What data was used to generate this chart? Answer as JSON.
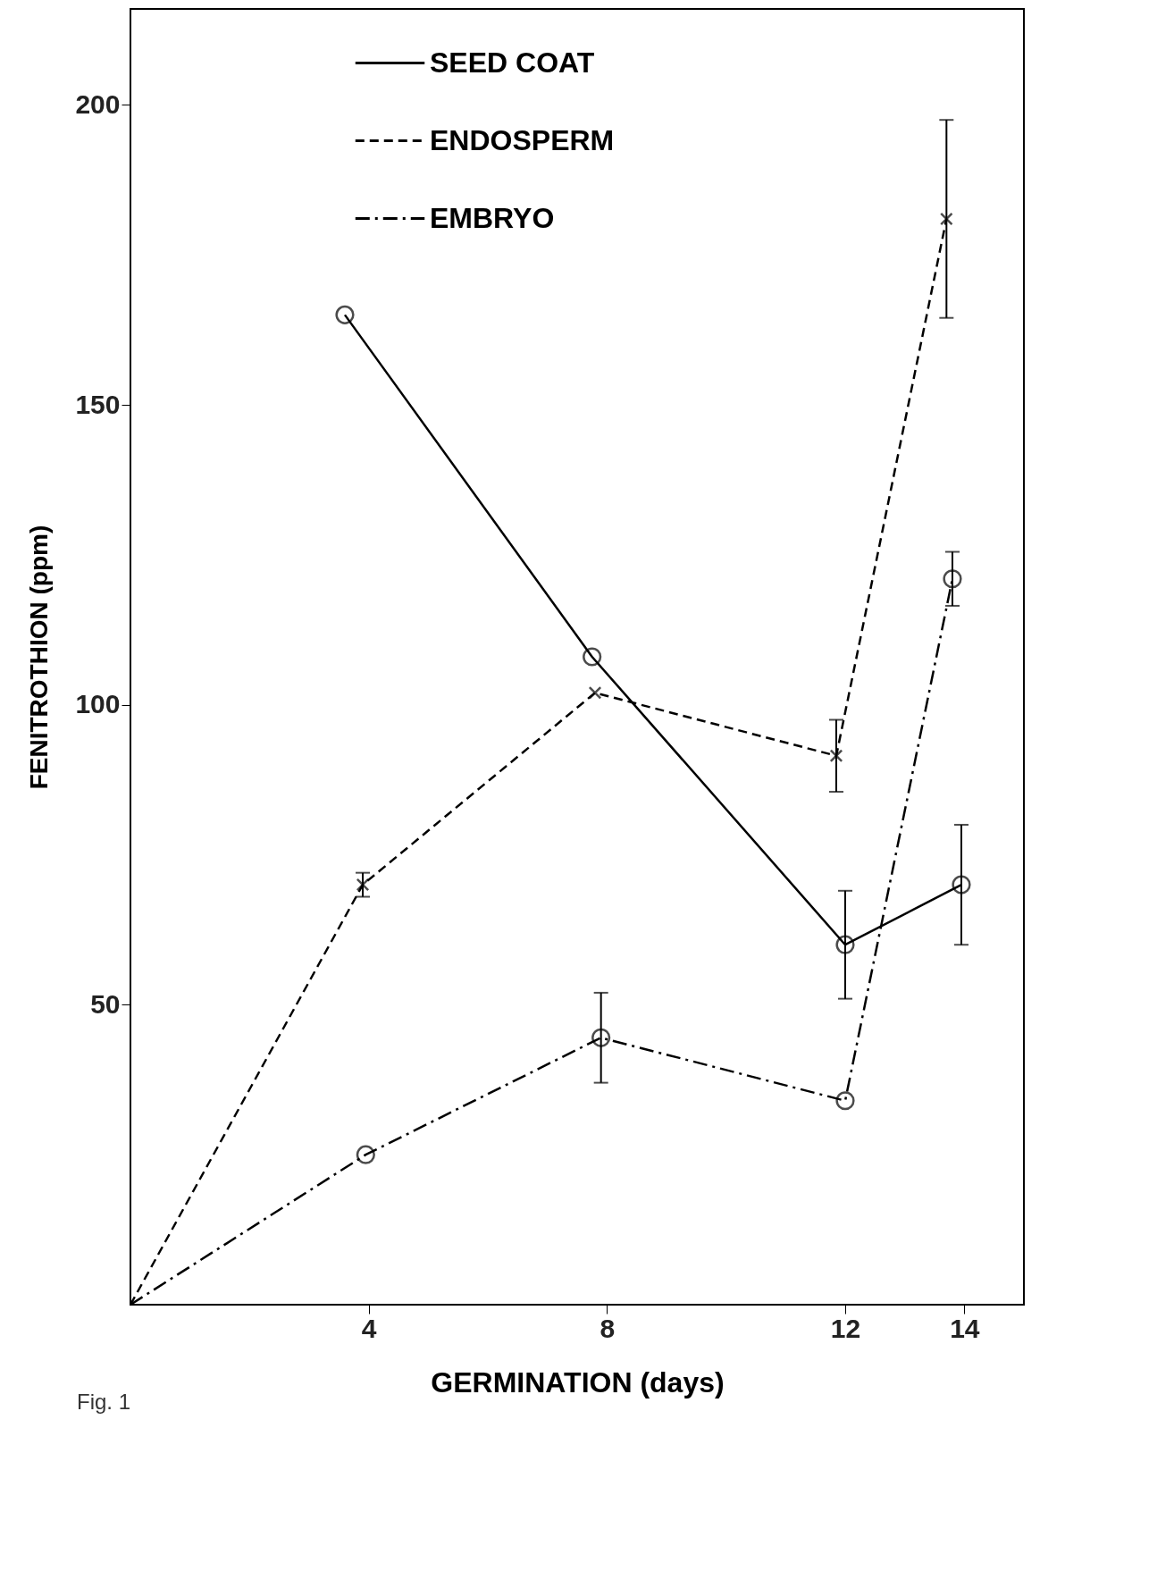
{
  "chart_data": {
    "type": "line",
    "xlabel": "GERMINATION (days)",
    "ylabel": "FENITROTHION (ppm)",
    "xlim": [
      0,
      15
    ],
    "xticks": [
      4,
      8,
      12,
      14
    ],
    "ylim": [
      0,
      216
    ],
    "yticks": [
      50,
      100,
      150,
      200
    ],
    "grid": false,
    "legend": "top",
    "annotations": [
      "Fig. 1"
    ],
    "series": [
      {
        "name": "SEED COAT",
        "color": "#000000",
        "line_style": "solid",
        "marker": "circle",
        "x": [
          3.6,
          7.75,
          12,
          13.95
        ],
        "values": [
          165,
          108,
          60,
          70
        ],
        "errors": [
          null,
          null,
          9,
          10
        ]
      },
      {
        "name": "ENDOSPERM",
        "color": "#000000",
        "line_style": "dashed",
        "marker": "cross",
        "x": [
          0,
          3.9,
          7.8,
          11.85,
          13.7
        ],
        "values": [
          0,
          70,
          102,
          91.5,
          181
        ],
        "errors": [
          null,
          2,
          null,
          6,
          16.5
        ]
      },
      {
        "name": "EMBRYO",
        "color": "#000000",
        "line_style": "dashdot",
        "marker": "circle",
        "x": [
          0,
          3.95,
          7.9,
          12,
          13.8
        ],
        "values": [
          0,
          25,
          44.5,
          34,
          121
        ],
        "errors": [
          null,
          null,
          7.5,
          null,
          4.5
        ]
      }
    ]
  }
}
